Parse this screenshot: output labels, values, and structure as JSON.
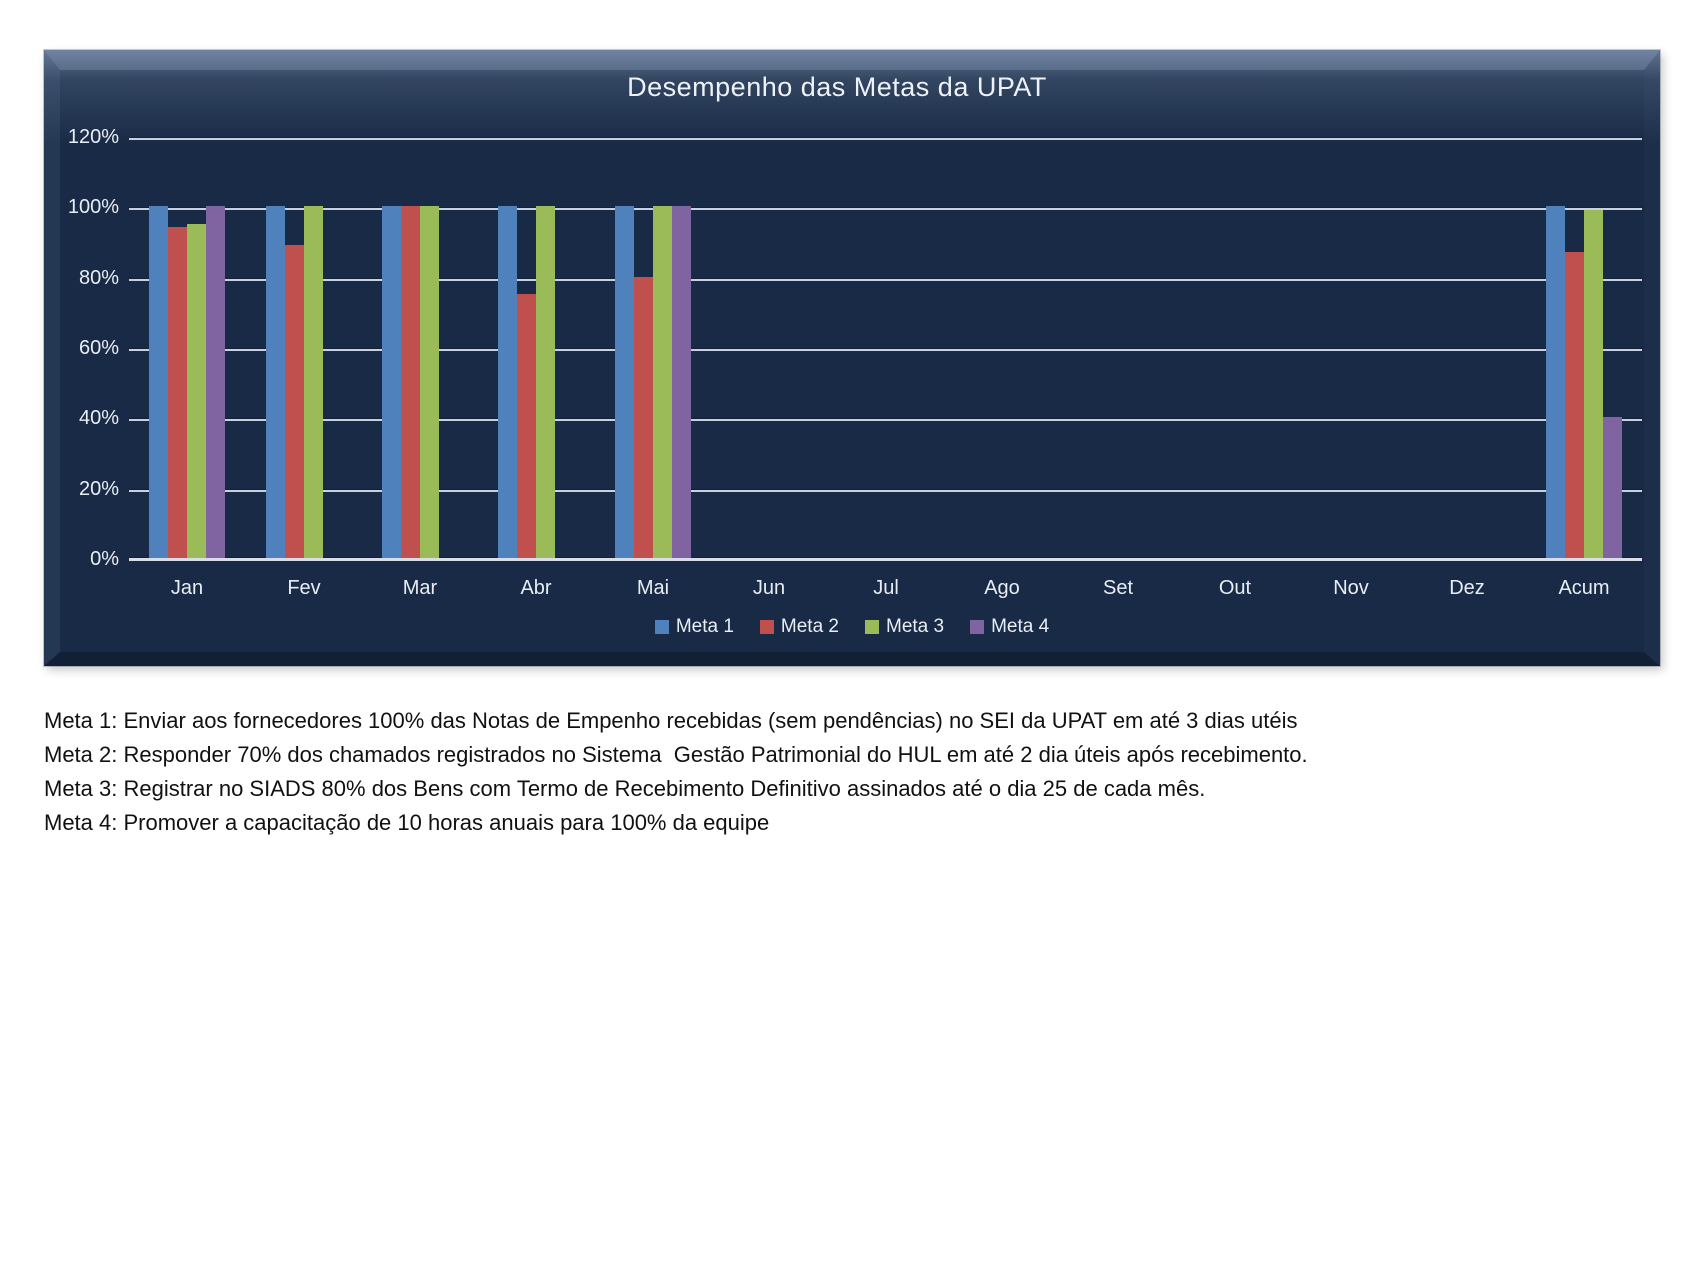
{
  "chart_data": {
    "type": "bar",
    "title": "Desempenho das Metas da UPAT",
    "categories": [
      "Jan",
      "Fev",
      "Mar",
      "Abr",
      "Mai",
      "Jun",
      "Jul",
      "Ago",
      "Set",
      "Out",
      "Nov",
      "Dez",
      "Acum"
    ],
    "series": [
      {
        "name": "Meta 1",
        "color": "#4F81BD",
        "values": [
          100,
          100,
          100,
          100,
          100,
          null,
          null,
          null,
          null,
          null,
          null,
          null,
          100
        ]
      },
      {
        "name": "Meta 2",
        "color": "#C0504D",
        "values": [
          94,
          89,
          100,
          75,
          80,
          null,
          null,
          null,
          null,
          null,
          null,
          null,
          87
        ]
      },
      {
        "name": "Meta 3",
        "color": "#9BBB59",
        "values": [
          95,
          100,
          100,
          100,
          100,
          null,
          null,
          null,
          null,
          null,
          null,
          null,
          99
        ]
      },
      {
        "name": "Meta 4",
        "color": "#8064A2",
        "values": [
          100,
          null,
          null,
          null,
          100,
          null,
          null,
          null,
          null,
          null,
          null,
          null,
          40
        ]
      }
    ],
    "xlabel": "",
    "ylabel": "",
    "ylim": [
      0,
      120
    ],
    "ytick_step": 20,
    "ytick_labels": [
      "0%",
      "20%",
      "40%",
      "60%",
      "80%",
      "100%",
      "120%"
    ],
    "grid": true,
    "legend_position": "bottom",
    "plot_bg": "#182a45",
    "gridline_color": "#c9d1e0",
    "text_color": "#e9edf5"
  },
  "footnotes": {
    "lines": [
      "Meta 1: Enviar aos fornecedores 100% das Notas de Empenho recebidas (sem pendências) no SEI da UPAT em até 3 dias utéis",
      "Meta 2: Responder 70% dos chamados registrados no Sistema  Gestão Patrimonial do HUL em até 2 dia úteis após recebimento.",
      "Meta 3: Registrar no SIADS 80% dos Bens com Termo de Recebimento Definitivo assinados até o dia 25 de cada mês.",
      "Meta 4: Promover a capacitação de 10 horas anuais para 100% da equipe"
    ]
  }
}
